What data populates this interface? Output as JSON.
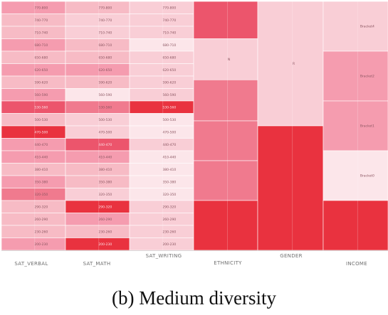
{
  "caption": "(b)  Medium diversity",
  "colors": {
    "c0": "#fce6ea",
    "c1": "#f9ced6",
    "c2": "#f7bbc5",
    "c3": "#f59caf",
    "c4": "#f07a8e",
    "c5": "#ec556c",
    "c6": "#e9323f"
  },
  "chart_data": {
    "type": "heatmap",
    "columns": [
      {
        "name": "SAT_VERBAL",
        "kind": "numeric",
        "cells": [
          {
            "label": "770-800",
            "level": 3
          },
          {
            "label": "740-770",
            "level": 2
          },
          {
            "label": "710-740",
            "level": 2
          },
          {
            "label": "680-710",
            "level": 3
          },
          {
            "label": "650-680",
            "level": 2
          },
          {
            "label": "620-650",
            "level": 3
          },
          {
            "label": "590-620",
            "level": 2
          },
          {
            "label": "560-590",
            "level": 3
          },
          {
            "label": "530-560",
            "level": 5
          },
          {
            "label": "500-530",
            "level": 2
          },
          {
            "label": "470-500",
            "level": 6
          },
          {
            "label": "440-470",
            "level": 3
          },
          {
            "label": "410-440",
            "level": 3
          },
          {
            "label": "380-410",
            "level": 2
          },
          {
            "label": "350-380",
            "level": 3
          },
          {
            "label": "320-350",
            "level": 4
          },
          {
            "label": "290-320",
            "level": 2
          },
          {
            "label": "260-290",
            "level": 2
          },
          {
            "label": "230-260",
            "level": 2
          },
          {
            "label": "200-230",
            "level": 3
          }
        ]
      },
      {
        "name": "SAT_MATH",
        "kind": "numeric",
        "cells": [
          {
            "label": "770-800",
            "level": 2
          },
          {
            "label": "740-770",
            "level": 1
          },
          {
            "label": "710-740",
            "level": 1
          },
          {
            "label": "680-710",
            "level": 2
          },
          {
            "label": "650-680",
            "level": 2
          },
          {
            "label": "620-650",
            "level": 3
          },
          {
            "label": "590-620",
            "level": 2
          },
          {
            "label": "560-590",
            "level": 0
          },
          {
            "label": "530-560",
            "level": 4
          },
          {
            "label": "500-530",
            "level": 1
          },
          {
            "label": "470-500",
            "level": 1
          },
          {
            "label": "440-470",
            "level": 5
          },
          {
            "label": "410-440",
            "level": 3
          },
          {
            "label": "380-410",
            "level": 2
          },
          {
            "label": "350-380",
            "level": 2
          },
          {
            "label": "320-350",
            "level": 1
          },
          {
            "label": "290-320",
            "level": 6
          },
          {
            "label": "260-290",
            "level": 3
          },
          {
            "label": "230-260",
            "level": 2
          },
          {
            "label": "200-230",
            "level": 6
          }
        ]
      },
      {
        "name": "SAT_WRITING",
        "kind": "numeric",
        "cells": [
          {
            "label": "770-800",
            "level": 1
          },
          {
            "label": "740-770",
            "level": 1
          },
          {
            "label": "710-740",
            "level": 1
          },
          {
            "label": "680-710",
            "level": 0
          },
          {
            "label": "650-680",
            "level": 1
          },
          {
            "label": "620-650",
            "level": 1
          },
          {
            "label": "590-620",
            "level": 1
          },
          {
            "label": "560-590",
            "level": 1
          },
          {
            "label": "530-560",
            "level": 6
          },
          {
            "label": "500-530",
            "level": 0
          },
          {
            "label": "470-500",
            "level": 0
          },
          {
            "label": "440-470",
            "level": 1
          },
          {
            "label": "410-440",
            "level": 0
          },
          {
            "label": "380-410",
            "level": 0
          },
          {
            "label": "350-380",
            "level": 0
          },
          {
            "label": "320-350",
            "level": 0
          },
          {
            "label": "290-320",
            "level": 1
          },
          {
            "label": "260-290",
            "level": 1
          },
          {
            "label": "230-260",
            "level": 1
          },
          {
            "label": "200-230",
            "level": 1
          }
        ]
      },
      {
        "name": "ETHNICITY",
        "kind": "categorical",
        "segments": [
          {
            "label": "",
            "span": 3,
            "level": 5
          },
          {
            "label": "N",
            "span": 3.3,
            "level": 1
          },
          {
            "label": "",
            "span": 3.3,
            "level": 4
          },
          {
            "label": "",
            "span": 3.2,
            "level": 4
          },
          {
            "label": "",
            "span": 3.2,
            "level": 4
          },
          {
            "label": "",
            "span": 4,
            "level": 6
          }
        ]
      },
      {
        "name": "GENDER",
        "kind": "categorical",
        "segments": [
          {
            "label": "R",
            "span": 10,
            "level": 1
          },
          {
            "label": "",
            "span": 10,
            "level": 6
          }
        ]
      },
      {
        "name": "INCOME",
        "kind": "categorical",
        "segments": [
          {
            "label": "Bracket4",
            "span": 4,
            "level": 1
          },
          {
            "label": "Bracket2",
            "span": 4,
            "level": 3
          },
          {
            "label": "Bracket1",
            "span": 4,
            "level": 3
          },
          {
            "label": "Bracket0",
            "span": 4,
            "level": 0
          },
          {
            "label": "",
            "span": 4,
            "level": 6
          }
        ]
      }
    ]
  }
}
